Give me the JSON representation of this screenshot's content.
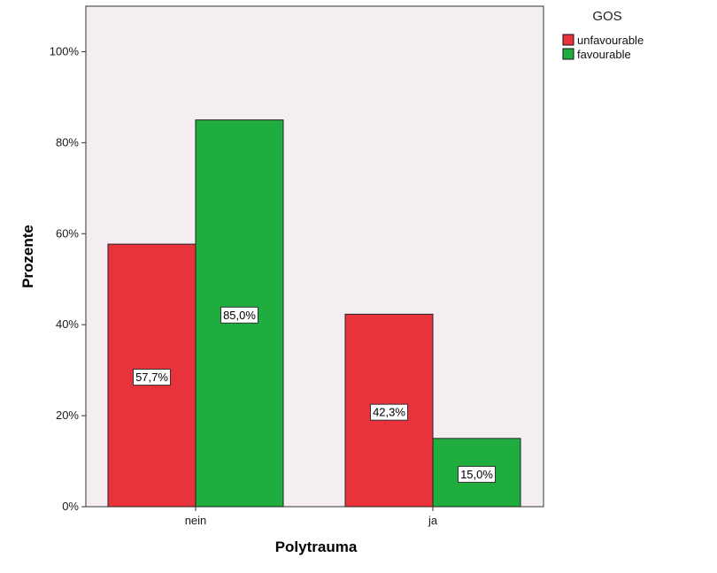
{
  "chart_data": {
    "type": "bar",
    "title": "",
    "xlabel": "Polytrauma",
    "ylabel": "Prozente",
    "categories": [
      "nein",
      "ja"
    ],
    "series": [
      {
        "name": "unfavourable",
        "values": [
          57.7,
          42.3
        ],
        "labels": [
          "57,7%",
          "42,3%"
        ],
        "color": "#e8323c"
      },
      {
        "name": "favourable",
        "values": [
          85.0,
          15.0
        ],
        "labels": [
          "85,0%",
          "15,0%"
        ],
        "color": "#1fad3f"
      }
    ],
    "ylim": [
      0,
      110
    ],
    "yticks": [
      0,
      20,
      40,
      60,
      80,
      100
    ],
    "ytick_labels": [
      "0%",
      "20%",
      "40%",
      "60%",
      "80%",
      "100%"
    ],
    "legend": {
      "title": "GOS",
      "placement": "right-top"
    },
    "grid": false,
    "plot_background": "#f4eef3"
  }
}
